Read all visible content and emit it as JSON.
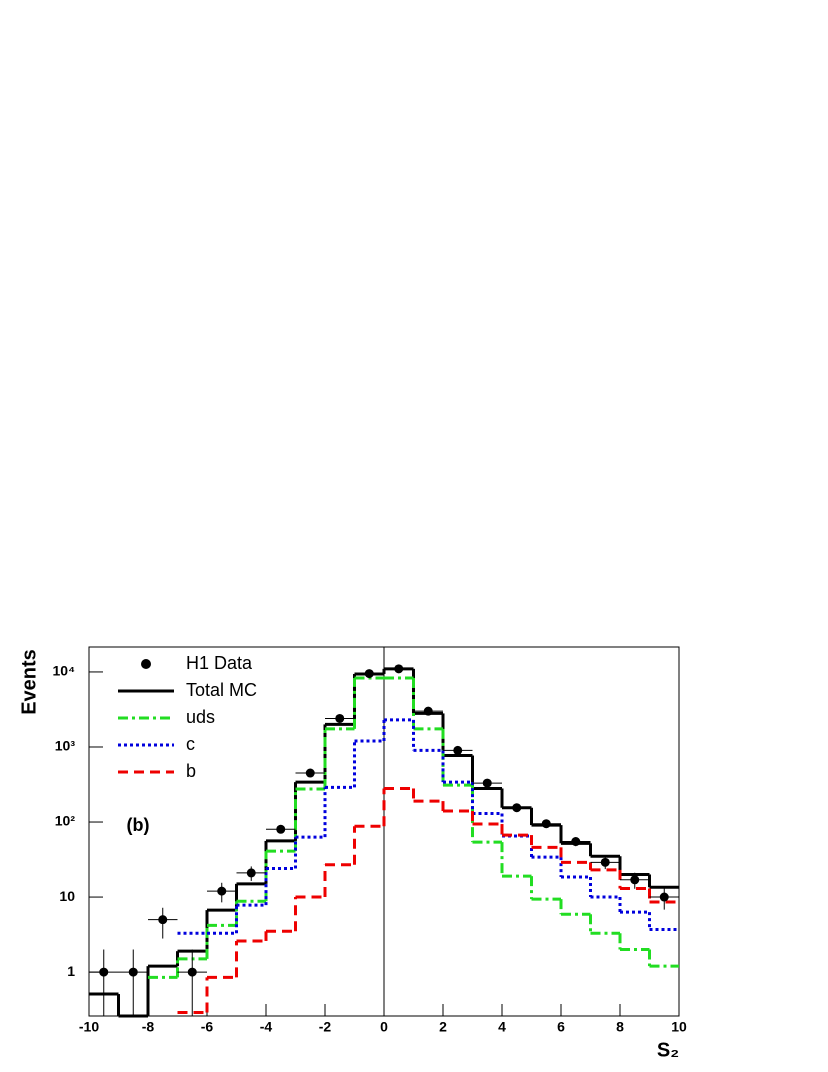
{
  "chart_data": {
    "type": "step-histogram",
    "ylabel": "Events",
    "xlabel": "S₂",
    "annotation": "(b)",
    "log_y": true,
    "bins": [
      -10,
      -9,
      -8,
      -7,
      -6,
      -5,
      -4,
      -3,
      -2,
      -1,
      0,
      1,
      2,
      3,
      4,
      5,
      6,
      7,
      8,
      9,
      10
    ],
    "xlim": [
      -10,
      10
    ],
    "xticks": [
      -10,
      -8,
      -6,
      -4,
      -2,
      0,
      2,
      4,
      6,
      8,
      10
    ],
    "ylim": [
      0.26,
      21500
    ],
    "yticks": [
      1,
      10,
      {
        "value": 100,
        "label": "10²"
      },
      {
        "value": 1000,
        "label": "10³"
      },
      {
        "value": 10000,
        "label": "10⁴"
      }
    ],
    "vline": 0,
    "points": {
      "name": "H1 Data",
      "color": "#000000",
      "x": [
        -9.5,
        -8.5,
        -7.5,
        -6.5,
        -5.5,
        -4.5,
        -3.5,
        -2.5,
        -1.5,
        -0.5,
        0.5,
        1.5,
        2.5,
        3.5,
        4.5,
        5.5,
        6.5,
        7.5,
        8.5,
        9.5
      ],
      "values": [
        1,
        1,
        5,
        1,
        12,
        21,
        80,
        450,
        2400,
        9500,
        11000,
        3000,
        900,
        330,
        155,
        95,
        55,
        29,
        17,
        10
      ],
      "errors": [
        1,
        1,
        2.2,
        1,
        3.5,
        4.6,
        9,
        21,
        49,
        97,
        105,
        55,
        30,
        18,
        12,
        10,
        7.4,
        5.4,
        4.1,
        3.2
      ]
    },
    "series": [
      {
        "name": "Total MC",
        "color": "#000000",
        "style": "solid",
        "values": [
          0.51,
          0.26,
          1.2,
          1.9,
          6.7,
          15,
          56,
          340,
          2000,
          9400,
          11000,
          2800,
          770,
          280,
          155,
          91,
          52,
          35,
          20,
          13.5
        ]
      },
      {
        "name": "uds",
        "color": "#22dd22",
        "style": "dashdot",
        "values": [
          null,
          null,
          0.85,
          1.5,
          4.2,
          8.8,
          41,
          275,
          1740,
          8300,
          8300,
          1740,
          310,
          54,
          19,
          9.4,
          5.9,
          3.3,
          2.0,
          1.2
        ]
      },
      {
        "name": "c",
        "color": "#0000dd",
        "style": "dotted",
        "values": [
          null,
          null,
          null,
          3.3,
          3.3,
          7.8,
          24,
          63,
          290,
          1200,
          2300,
          900,
          340,
          130,
          65,
          34,
          18.5,
          10,
          6.3,
          3.7
        ]
      },
      {
        "name": "b",
        "color": "#ee0000",
        "style": "dashed",
        "values": [
          null,
          null,
          null,
          0.29,
          0.85,
          2.6,
          3.5,
          10,
          27,
          88,
          280,
          190,
          140,
          94,
          67,
          46,
          29,
          23,
          13,
          8.6
        ]
      }
    ]
  }
}
